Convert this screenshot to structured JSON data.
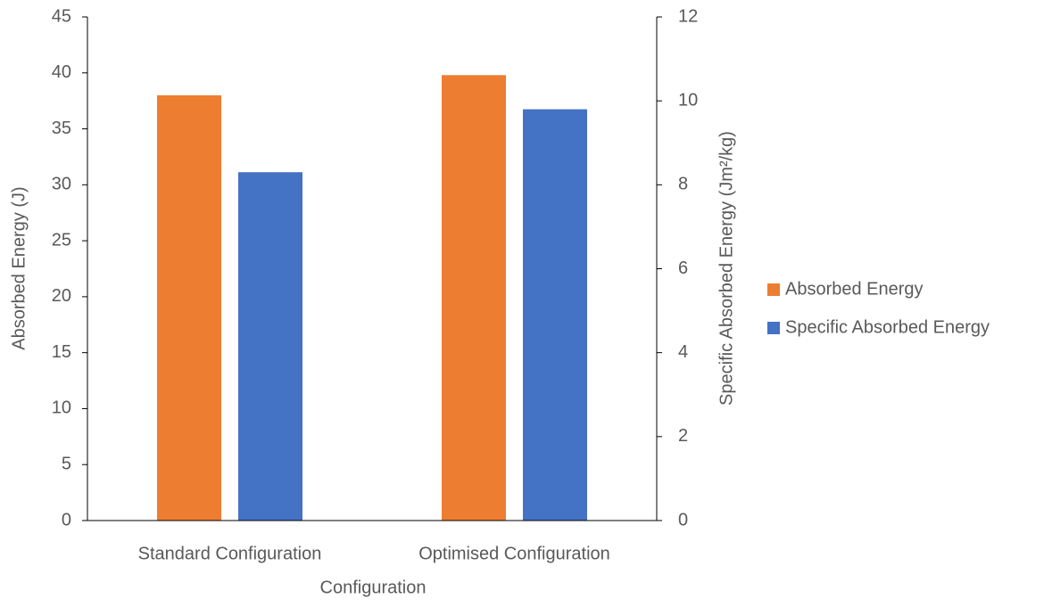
{
  "chart_data": {
    "type": "bar",
    "categories": [
      "Standard Configuration",
      "Optimised Configuration"
    ],
    "x_label": "Configuration",
    "y_label": "Absorbed Energy (J)",
    "y2_label": "Specific Absorbed Energy (Jm²/kg)",
    "series": [
      {
        "name": "Absorbed Energy",
        "color": "#ed7d31",
        "values": [
          38.0,
          39.8
        ]
      },
      {
        "name": "Specific Absorbed Energy",
        "color": "#4472c4",
        "values": [
          8.3,
          9.8
        ],
        "axis": "y2"
      }
    ],
    "ylim": [
      0,
      45
    ],
    "yticks": [
      0,
      5,
      10,
      15,
      20,
      25,
      30,
      35,
      40,
      45
    ],
    "y2lim": [
      0,
      12
    ],
    "y2ticks": [
      0,
      2,
      4,
      6,
      8,
      10,
      12
    ],
    "legend": "right"
  }
}
